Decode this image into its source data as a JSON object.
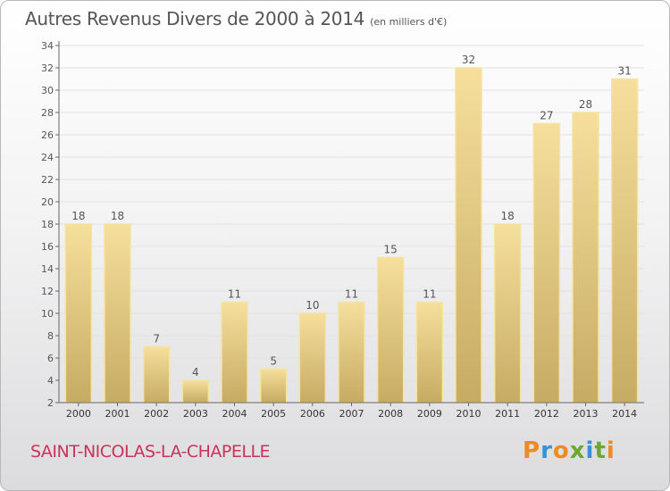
{
  "header": {
    "title": "Autres Revenus Divers de 2000 à 2014",
    "subtitle": "(en milliers d'€)"
  },
  "footer": {
    "place": "SAINT-NICOLAS-LA-CHAPELLE",
    "logo": "Proxiti"
  },
  "colors": {
    "bar_top": "#f6df9c",
    "bar_bottom": "#c6ab63",
    "bar_outline": "#f3e4a0",
    "axis": "#666666",
    "grid": "#e2e2e2",
    "text": "#555555",
    "place": "#c8345a"
  },
  "chart_data": {
    "type": "bar",
    "categories": [
      "2000",
      "2001",
      "2002",
      "2003",
      "2004",
      "2005",
      "2006",
      "2007",
      "2008",
      "2009",
      "2010",
      "2011",
      "2012",
      "2013",
      "2014"
    ],
    "values": [
      18,
      18,
      7,
      4,
      11,
      5,
      10,
      11,
      15,
      11,
      32,
      18,
      27,
      28,
      31
    ],
    "ylim": [
      2,
      34
    ],
    "yticks": [
      2,
      4,
      6,
      8,
      10,
      12,
      14,
      16,
      18,
      20,
      22,
      24,
      26,
      28,
      30,
      32,
      34
    ],
    "grid": true,
    "data_labels": true
  }
}
